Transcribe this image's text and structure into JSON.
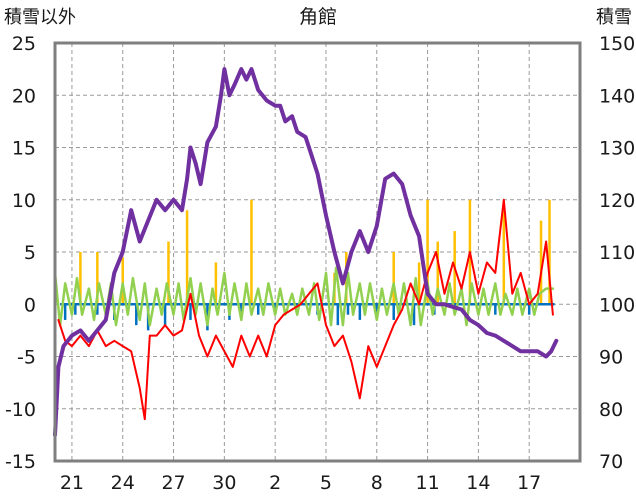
{
  "chart_data": {
    "type": "line",
    "title": "角館",
    "y_left_label": "積雪以外",
    "y_right_label": "積雪",
    "y_left_range": [
      -15,
      25
    ],
    "y_left_ticks": [
      -15,
      -10,
      -5,
      0,
      5,
      10,
      15,
      20,
      25
    ],
    "y_right_range": [
      70,
      150
    ],
    "y_right_ticks": [
      70,
      80,
      90,
      100,
      110,
      120,
      130,
      140,
      150
    ],
    "x_range": [
      0,
      31
    ],
    "x_ticks": [
      {
        "x": 1,
        "label": "21"
      },
      {
        "x": 4,
        "label": "24"
      },
      {
        "x": 7,
        "label": "27"
      },
      {
        "x": 10,
        "label": "30"
      },
      {
        "x": 13,
        "label": "2"
      },
      {
        "x": 16,
        "label": "5"
      },
      {
        "x": 19,
        "label": "8"
      },
      {
        "x": 22,
        "label": "11"
      },
      {
        "x": 25,
        "label": "14"
      },
      {
        "x": 28,
        "label": "17"
      }
    ],
    "grid": "dashed",
    "colors": {
      "snow_depth": "#7030a0",
      "temperature": "#ff0000",
      "precipitation": "#ffc000",
      "snow_change": "#0070c0",
      "other": "#92d050"
    },
    "series": [
      {
        "key": "snow_depth",
        "axis": "right",
        "points": [
          [
            0,
            75
          ],
          [
            0.2,
            88
          ],
          [
            0.5,
            92
          ],
          [
            1,
            94
          ],
          [
            1.5,
            95
          ],
          [
            2,
            93
          ],
          [
            2.5,
            95
          ],
          [
            3,
            97
          ],
          [
            3.5,
            106
          ],
          [
            4,
            110
          ],
          [
            4.5,
            118
          ],
          [
            5,
            112
          ],
          [
            5.5,
            116
          ],
          [
            6,
            120
          ],
          [
            6.5,
            118
          ],
          [
            7,
            120
          ],
          [
            7.5,
            118
          ],
          [
            7.8,
            124
          ],
          [
            8,
            130
          ],
          [
            8.3,
            127
          ],
          [
            8.6,
            123
          ],
          [
            9,
            131
          ],
          [
            9.5,
            134
          ],
          [
            9.8,
            140
          ],
          [
            10,
            145
          ],
          [
            10.3,
            140
          ],
          [
            10.6,
            142
          ],
          [
            11,
            145
          ],
          [
            11.3,
            143
          ],
          [
            11.6,
            145
          ],
          [
            12,
            141
          ],
          [
            12.5,
            139
          ],
          [
            13,
            138
          ],
          [
            13.3,
            138
          ],
          [
            13.6,
            135
          ],
          [
            14,
            136
          ],
          [
            14.3,
            133
          ],
          [
            14.8,
            132
          ],
          [
            15,
            130
          ],
          [
            15.5,
            125
          ],
          [
            16,
            117
          ],
          [
            16.5,
            110
          ],
          [
            17,
            104
          ],
          [
            17.5,
            110
          ],
          [
            18,
            114
          ],
          [
            18.5,
            110
          ],
          [
            19,
            115
          ],
          [
            19.5,
            124
          ],
          [
            20,
            125
          ],
          [
            20.5,
            123
          ],
          [
            21,
            117
          ],
          [
            21.5,
            113
          ],
          [
            22,
            102
          ],
          [
            22.5,
            100
          ],
          [
            23,
            100
          ],
          [
            23.5,
            99.5
          ],
          [
            24,
            99
          ],
          [
            24.5,
            97
          ],
          [
            25,
            96
          ],
          [
            25.5,
            94.5
          ],
          [
            26,
            94
          ],
          [
            26.5,
            93
          ],
          [
            27,
            92
          ],
          [
            27.5,
            91
          ],
          [
            28,
            91
          ],
          [
            28.5,
            91
          ],
          [
            29,
            90
          ],
          [
            29.3,
            91
          ],
          [
            29.6,
            93
          ]
        ]
      },
      {
        "key": "temperature",
        "axis": "left",
        "points": [
          [
            0.2,
            -1.5
          ],
          [
            0.6,
            -3.5
          ],
          [
            1,
            -4
          ],
          [
            1.5,
            -3
          ],
          [
            2,
            -4
          ],
          [
            2.5,
            -2.5
          ],
          [
            3,
            -4
          ],
          [
            3.5,
            -3.5
          ],
          [
            4,
            -4
          ],
          [
            4.5,
            -4.5
          ],
          [
            5,
            -8
          ],
          [
            5.3,
            -11
          ],
          [
            5.6,
            -3
          ],
          [
            6,
            -3
          ],
          [
            6.5,
            -2
          ],
          [
            7,
            -3
          ],
          [
            7.5,
            -2.5
          ],
          [
            8,
            1
          ],
          [
            8.5,
            -3
          ],
          [
            9,
            -5
          ],
          [
            9.5,
            -3
          ],
          [
            10,
            -4.5
          ],
          [
            10.5,
            -6
          ],
          [
            11,
            -3
          ],
          [
            11.5,
            -5
          ],
          [
            12,
            -3
          ],
          [
            12.5,
            -5
          ],
          [
            13,
            -2
          ],
          [
            13.5,
            -1
          ],
          [
            14,
            -0.5
          ],
          [
            14.5,
            0
          ],
          [
            15,
            1
          ],
          [
            15.5,
            2
          ],
          [
            16,
            -2
          ],
          [
            16.5,
            -4
          ],
          [
            17,
            -3
          ],
          [
            17.5,
            -5.5
          ],
          [
            18,
            -9
          ],
          [
            18.5,
            -4
          ],
          [
            19,
            -6
          ],
          [
            19.5,
            -4
          ],
          [
            20,
            -2
          ],
          [
            20.5,
            -0.5
          ],
          [
            21,
            2
          ],
          [
            21.5,
            0
          ],
          [
            22,
            3
          ],
          [
            22.5,
            5
          ],
          [
            23,
            1
          ],
          [
            23.5,
            4
          ],
          [
            24,
            1.5
          ],
          [
            24.5,
            5
          ],
          [
            25,
            1
          ],
          [
            25.5,
            4
          ],
          [
            26,
            3
          ],
          [
            26.5,
            10
          ],
          [
            27,
            1
          ],
          [
            27.5,
            3
          ],
          [
            28,
            0
          ],
          [
            28.5,
            1
          ],
          [
            29,
            6
          ],
          [
            29.4,
            -1
          ]
        ]
      },
      {
        "key": "other",
        "axis": "left",
        "points": [
          [
            0,
            3
          ],
          [
            0.3,
            -2
          ],
          [
            0.6,
            2
          ],
          [
            1,
            -1
          ],
          [
            1.3,
            2.5
          ],
          [
            1.6,
            -1
          ],
          [
            2,
            1.5
          ],
          [
            2.3,
            -1.5
          ],
          [
            2.6,
            2
          ],
          [
            3,
            -1
          ],
          [
            3.3,
            2
          ],
          [
            3.6,
            -2
          ],
          [
            4,
            2
          ],
          [
            4.3,
            -1
          ],
          [
            4.6,
            2.5
          ],
          [
            5,
            -1.5
          ],
          [
            5.3,
            2
          ],
          [
            5.6,
            -2
          ],
          [
            6,
            1.5
          ],
          [
            6.3,
            -1
          ],
          [
            6.6,
            2
          ],
          [
            7,
            -1
          ],
          [
            7.3,
            2
          ],
          [
            7.6,
            -1.5
          ],
          [
            8,
            2.5
          ],
          [
            8.3,
            -1
          ],
          [
            8.6,
            2
          ],
          [
            9,
            -2
          ],
          [
            9.3,
            1.5
          ],
          [
            9.6,
            -1
          ],
          [
            10,
            3
          ],
          [
            10.3,
            -1
          ],
          [
            10.6,
            2
          ],
          [
            11,
            -1.5
          ],
          [
            11.3,
            2
          ],
          [
            11.6,
            -1
          ],
          [
            12,
            1.5
          ],
          [
            12.3,
            -1
          ],
          [
            12.6,
            2
          ],
          [
            13,
            -1
          ],
          [
            13.3,
            1.5
          ],
          [
            13.6,
            -1
          ],
          [
            14,
            1
          ],
          [
            14.3,
            -1
          ],
          [
            14.6,
            1.5
          ],
          [
            15,
            -1
          ],
          [
            15.3,
            2
          ],
          [
            15.6,
            -1.5
          ],
          [
            16,
            3
          ],
          [
            16.3,
            -2
          ],
          [
            16.6,
            3.5
          ],
          [
            17,
            -2
          ],
          [
            17.3,
            3
          ],
          [
            17.6,
            -1
          ],
          [
            18,
            2
          ],
          [
            18.3,
            -1
          ],
          [
            18.6,
            2
          ],
          [
            19,
            -1.5
          ],
          [
            19.3,
            1.5
          ],
          [
            19.6,
            -1
          ],
          [
            20,
            2
          ],
          [
            20.3,
            -1
          ],
          [
            20.6,
            2
          ],
          [
            21,
            -2
          ],
          [
            21.3,
            2.5
          ],
          [
            21.6,
            -2
          ],
          [
            22,
            2
          ],
          [
            22.3,
            -1
          ],
          [
            22.6,
            1.5
          ],
          [
            23,
            -1
          ],
          [
            23.3,
            2
          ],
          [
            23.6,
            -1
          ],
          [
            24,
            1.5
          ],
          [
            24.3,
            -2
          ],
          [
            24.6,
            2
          ],
          [
            25,
            -1
          ],
          [
            25.3,
            1.5
          ],
          [
            25.6,
            -1
          ],
          [
            26,
            2
          ],
          [
            26.3,
            -1
          ],
          [
            26.6,
            1
          ],
          [
            27,
            -1
          ],
          [
            27.3,
            1.5
          ],
          [
            27.6,
            -1
          ],
          [
            28,
            1.5
          ],
          [
            28.3,
            -1
          ],
          [
            28.6,
            1
          ],
          [
            29,
            1.5
          ],
          [
            29.4,
            1.5
          ]
        ]
      },
      {
        "key": "precipitation",
        "axis": "left",
        "style": "bars",
        "points": [
          [
            1.5,
            5
          ],
          [
            2.5,
            5
          ],
          [
            4,
            4.5
          ],
          [
            6.7,
            6
          ],
          [
            7.8,
            9
          ],
          [
            9.5,
            4
          ],
          [
            11.6,
            10
          ],
          [
            16.5,
            3
          ],
          [
            17.2,
            5
          ],
          [
            20,
            5
          ],
          [
            21.5,
            4
          ],
          [
            22,
            10
          ],
          [
            22.6,
            6
          ],
          [
            23.6,
            7
          ],
          [
            24.5,
            10
          ],
          [
            26.5,
            9
          ],
          [
            28.7,
            8
          ],
          [
            29.2,
            10
          ]
        ]
      },
      {
        "key": "snow_change",
        "axis": "left",
        "style": "bars",
        "points": [
          [
            0.6,
            -1.5
          ],
          [
            1.2,
            -1
          ],
          [
            2.5,
            -1
          ],
          [
            3.5,
            -1.5
          ],
          [
            4.8,
            -2
          ],
          [
            5.5,
            -2.5
          ],
          [
            6.5,
            -2
          ],
          [
            8,
            -1.5
          ],
          [
            9,
            -2.5
          ],
          [
            10.3,
            -1.5
          ],
          [
            11,
            -1
          ],
          [
            12,
            -1
          ],
          [
            13,
            -1
          ],
          [
            15.5,
            -1
          ],
          [
            16.7,
            -2
          ],
          [
            17.3,
            -1
          ],
          [
            18,
            -1.5
          ],
          [
            19,
            -1
          ],
          [
            20,
            -1.5
          ],
          [
            21.2,
            -2
          ],
          [
            22.4,
            -1
          ],
          [
            26,
            -1
          ],
          [
            28,
            -1
          ]
        ]
      }
    ]
  }
}
